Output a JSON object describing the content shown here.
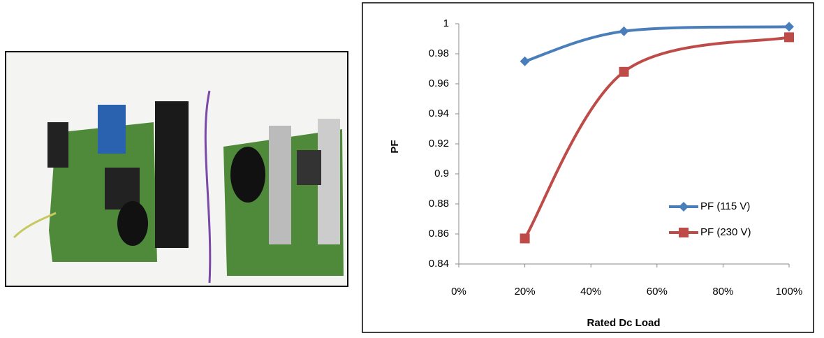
{
  "chart_data": {
    "type": "line",
    "x_label": "Rated Dc Load",
    "y_label": "PF",
    "x": [
      20,
      50,
      100
    ],
    "series": [
      {
        "name": "PF (115 V)",
        "color": "#4a7ebb",
        "marker": "diamond",
        "values": [
          0.975,
          0.995,
          0.998
        ]
      },
      {
        "name": "PF (230 V)",
        "color": "#be4b48",
        "marker": "square",
        "values": [
          0.857,
          0.968,
          0.991
        ]
      }
    ],
    "xlim": [
      0,
      100
    ],
    "xticks": [
      {
        "value": 0,
        "label": "0%"
      },
      {
        "value": 20,
        "label": "20%"
      },
      {
        "value": 40,
        "label": "40%"
      },
      {
        "value": 60,
        "label": "60%"
      },
      {
        "value": 80,
        "label": "80%"
      },
      {
        "value": 100,
        "label": "100%"
      }
    ],
    "ylim": [
      0.84,
      1
    ],
    "yticks": [
      0.84,
      0.86,
      0.88,
      0.9,
      0.92,
      0.94,
      0.96,
      0.98,
      1
    ],
    "grid": false,
    "legend": "right",
    "smooth": true
  }
}
